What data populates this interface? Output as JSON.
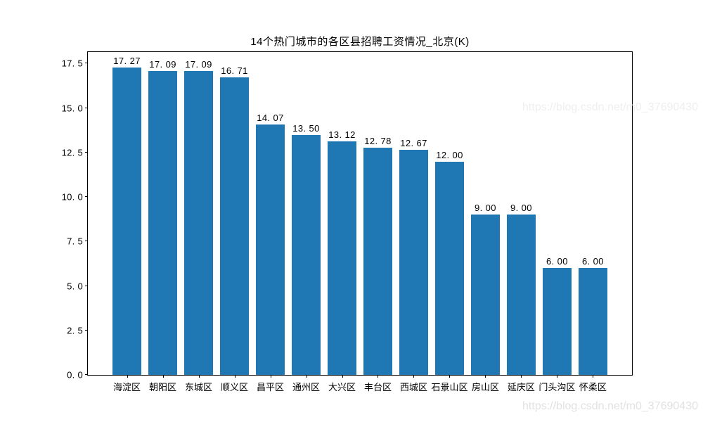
{
  "watermark": {
    "text": "https://blog.csdn.net/m0_37690430"
  },
  "chart_data": {
    "type": "bar",
    "title": "14个热门城市的各区县招聘工资情况_北京(K)",
    "categories": [
      "海淀区",
      "朝阳区",
      "东城区",
      "顺义区",
      "昌平区",
      "通州区",
      "大兴区",
      "丰台区",
      "西城区",
      "石景山区",
      "房山区",
      "延庆区",
      "门头沟区",
      "怀柔区"
    ],
    "values": [
      17.27,
      17.09,
      17.09,
      16.71,
      14.07,
      13.5,
      13.12,
      12.78,
      12.67,
      12.0,
      9.0,
      9.0,
      6.0,
      6.0
    ],
    "value_labels": [
      "17.27",
      "17.09",
      "17.09",
      "16.71",
      "14.07",
      "13.50",
      "13.12",
      "12.78",
      "12.67",
      "12.00",
      "9.00",
      "9.00",
      "6.00",
      "6.00"
    ],
    "yticks": [
      "0.0",
      "2.5",
      "5.0",
      "7.5",
      "10.0",
      "12.5",
      "15.0",
      "17.5"
    ],
    "ylim": [
      0,
      18.15
    ],
    "xlabel": "",
    "ylabel": "",
    "grid": false,
    "legend": "none",
    "bar_color": "#1f77b4",
    "bar_width_fraction": 0.8
  }
}
